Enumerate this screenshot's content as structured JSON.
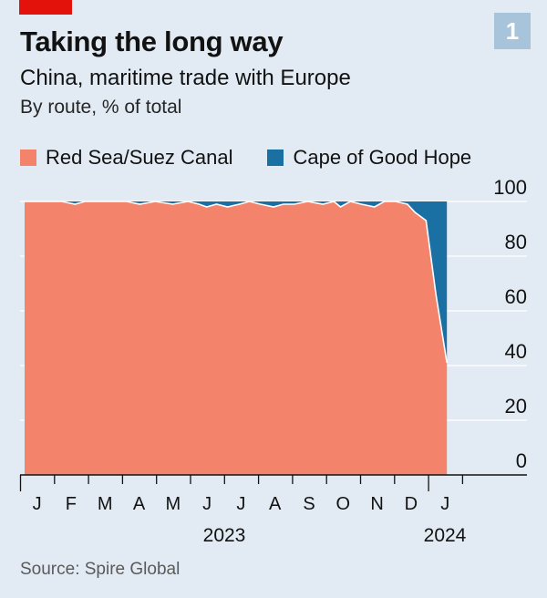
{
  "header": {
    "badge": "1",
    "title": "Taking the long way",
    "subtitle": "China, maritime trade with Europe",
    "units": "By route, % of total"
  },
  "source": "Source: Spire Global",
  "colors": {
    "red_sea": "#f3836a",
    "cape": "#1a6fa3",
    "background": "#e2ebf3",
    "grid": "#ffffff",
    "brand_red": "#e3120b"
  },
  "chart_data": {
    "type": "area",
    "stacked": true,
    "series": [
      {
        "name": "Red Sea/Suez Canal",
        "color": "#f3836a"
      },
      {
        "name": "Cape of Good Hope",
        "color": "#1a6fa3"
      }
    ],
    "month_labels": [
      "J",
      "F",
      "M",
      "A",
      "M",
      "J",
      "J",
      "A",
      "S",
      "O",
      "N",
      "D",
      "J"
    ],
    "year_labels": [
      "2023",
      "2024"
    ],
    "y_ticks": [
      "0",
      "20",
      "40",
      "60",
      "80",
      "100"
    ],
    "ylim": [
      0,
      100
    ],
    "legend_position": "top-left",
    "grid": true,
    "red_sea_share": [
      {
        "x": "2023-01-01",
        "y": 100
      },
      {
        "x": "2023-01-20",
        "y": 100
      },
      {
        "x": "2023-02-01",
        "y": 99
      },
      {
        "x": "2023-02-10",
        "y": 100
      },
      {
        "x": "2023-03-01",
        "y": 100
      },
      {
        "x": "2023-03-20",
        "y": 100
      },
      {
        "x": "2023-04-01",
        "y": 99
      },
      {
        "x": "2023-04-15",
        "y": 100
      },
      {
        "x": "2023-05-01",
        "y": 99
      },
      {
        "x": "2023-05-15",
        "y": 100
      },
      {
        "x": "2023-05-25",
        "y": 99
      },
      {
        "x": "2023-06-01",
        "y": 98
      },
      {
        "x": "2023-06-10",
        "y": 99
      },
      {
        "x": "2023-06-20",
        "y": 98
      },
      {
        "x": "2023-07-01",
        "y": 99
      },
      {
        "x": "2023-07-10",
        "y": 100
      },
      {
        "x": "2023-07-20",
        "y": 99
      },
      {
        "x": "2023-08-01",
        "y": 98
      },
      {
        "x": "2023-08-10",
        "y": 99
      },
      {
        "x": "2023-08-20",
        "y": 99
      },
      {
        "x": "2023-09-01",
        "y": 100
      },
      {
        "x": "2023-09-15",
        "y": 99
      },
      {
        "x": "2023-09-25",
        "y": 100
      },
      {
        "x": "2023-10-01",
        "y": 98
      },
      {
        "x": "2023-10-10",
        "y": 100
      },
      {
        "x": "2023-10-20",
        "y": 99
      },
      {
        "x": "2023-11-01",
        "y": 98
      },
      {
        "x": "2023-11-10",
        "y": 100
      },
      {
        "x": "2023-11-20",
        "y": 100
      },
      {
        "x": "2023-12-01",
        "y": 99
      },
      {
        "x": "2023-12-08",
        "y": 96
      },
      {
        "x": "2023-12-18",
        "y": 93
      },
      {
        "x": "2023-12-27",
        "y": 66
      },
      {
        "x": "2024-01-06",
        "y": 41
      }
    ]
  }
}
